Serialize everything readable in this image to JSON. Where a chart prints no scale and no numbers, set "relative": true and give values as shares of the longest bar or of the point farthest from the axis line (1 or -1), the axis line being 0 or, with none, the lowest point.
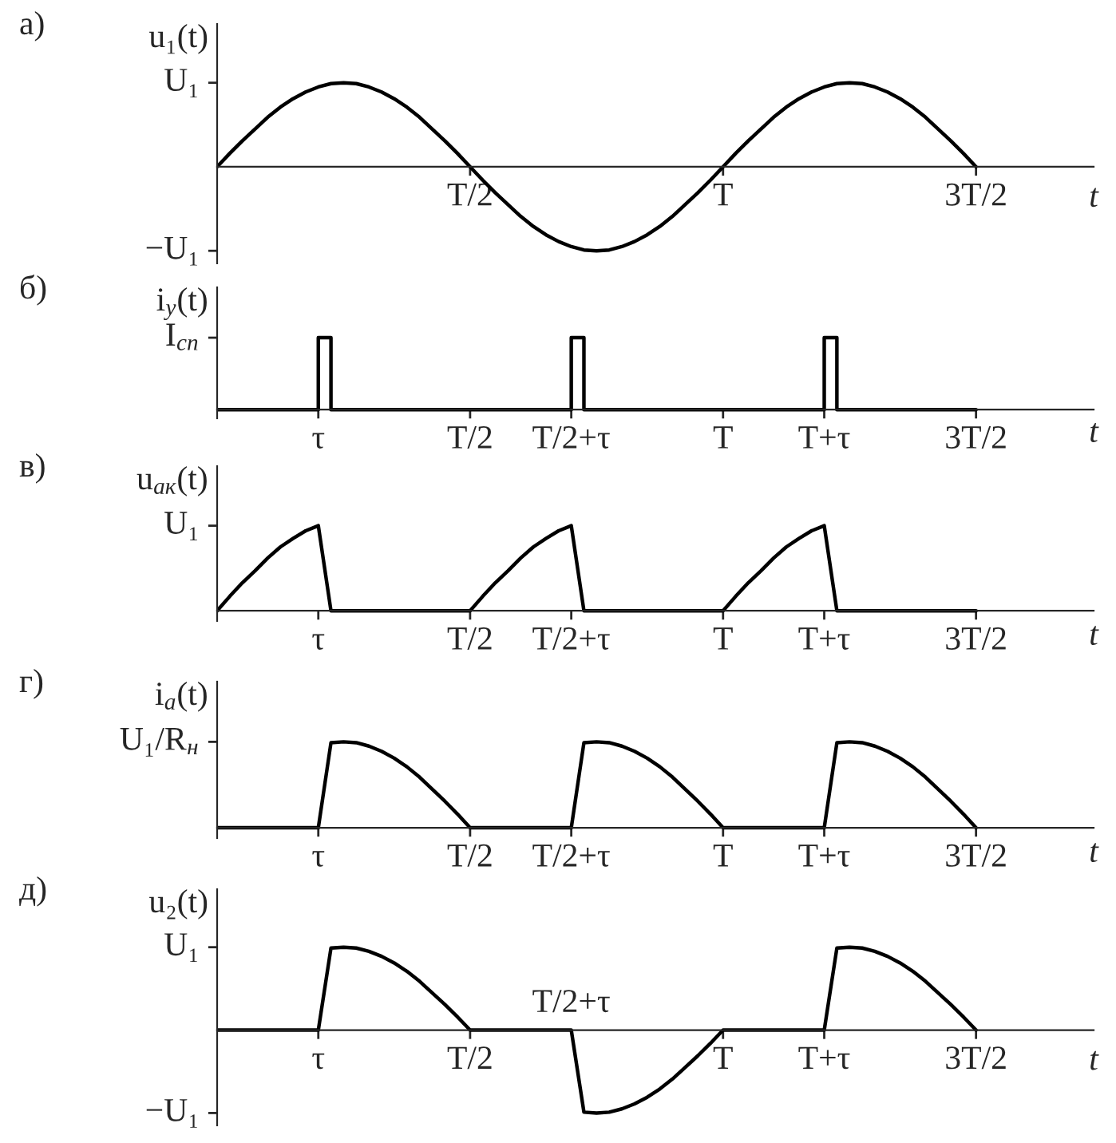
{
  "chart_data": [
    {
      "type": "line",
      "relative": true,
      "title": "а)",
      "xlabel": "t",
      "ylabel": "u₁(t)",
      "color": "#000000",
      "legend": false,
      "marker": "none",
      "categories": [
        null,
        null,
        null,
        null,
        null,
        null,
        null,
        null,
        null,
        null,
        null,
        null,
        null,
        null,
        null,
        null,
        null,
        null,
        null,
        null,
        "T/2",
        null,
        null,
        null,
        null,
        null,
        null,
        null,
        null,
        null,
        null,
        null,
        null,
        null,
        null,
        null,
        null,
        null,
        null,
        null,
        "T",
        null,
        null,
        null,
        null,
        null,
        null,
        null,
        null,
        null,
        null,
        null,
        null,
        null,
        null,
        null,
        null,
        null,
        null,
        null,
        "3T/2"
      ],
      "values": [
        0,
        0.16,
        0.31,
        0.45,
        0.59,
        0.71,
        0.81,
        0.89,
        0.95,
        0.99,
        1,
        0.99,
        0.95,
        0.89,
        0.81,
        0.71,
        0.59,
        0.45,
        0.31,
        0.16,
        0,
        -0.16,
        -0.31,
        -0.45,
        -0.59,
        -0.71,
        -0.81,
        -0.89,
        -0.95,
        -0.99,
        -1,
        -0.99,
        -0.95,
        -0.89,
        -0.81,
        -0.71,
        -0.59,
        -0.45,
        -0.31,
        -0.16,
        0,
        0.16,
        0.31,
        0.45,
        0.59,
        0.71,
        0.81,
        0.89,
        0.95,
        0.99,
        1,
        0.99,
        0.95,
        0.89,
        0.81,
        0.71,
        0.59,
        0.45,
        0.31,
        0.16,
        0
      ],
      "annotations": [
        "U₁",
        "−U₁"
      ]
    },
    {
      "type": "step",
      "relative": true,
      "title": "б)",
      "xlabel": "t",
      "ylabel": "i$_{у}$(t)",
      "color": "#000000",
      "legend": false,
      "marker": "none",
      "categories": [
        null,
        null,
        null,
        null,
        null,
        null,
        null,
        null,
        "τ",
        null,
        null,
        null,
        null,
        null,
        null,
        null,
        null,
        null,
        null,
        null,
        "T/2",
        null,
        null,
        null,
        null,
        null,
        null,
        null,
        "T/2+τ",
        null,
        null,
        null,
        null,
        null,
        null,
        null,
        null,
        null,
        null,
        null,
        "T",
        null,
        null,
        null,
        null,
        null,
        null,
        null,
        "T+τ",
        null,
        null,
        null,
        null,
        null,
        null,
        null,
        null,
        null,
        null,
        null,
        "3T/2"
      ],
      "values": [
        0,
        0,
        0,
        0,
        0,
        0,
        0,
        0,
        1,
        0,
        0,
        0,
        0,
        0,
        0,
        0,
        0,
        0,
        0,
        0,
        0,
        0,
        0,
        0,
        0,
        0,
        0,
        0,
        1,
        0,
        0,
        0,
        0,
        0,
        0,
        0,
        0,
        0,
        0,
        0,
        0,
        0,
        0,
        0,
        0,
        0,
        0,
        0,
        1,
        0,
        0,
        0,
        0,
        0,
        0,
        0,
        0,
        0,
        0,
        0,
        0
      ],
      "annotations": [
        "I$_{сп}$"
      ]
    },
    {
      "type": "line",
      "relative": true,
      "title": "в)",
      "xlabel": "t",
      "ylabel": "u$_{ак}$(t)",
      "color": "#000000",
      "legend": false,
      "marker": "none",
      "categories": [
        null,
        null,
        null,
        null,
        null,
        null,
        null,
        null,
        "τ",
        null,
        null,
        null,
        null,
        null,
        null,
        null,
        null,
        null,
        null,
        null,
        "T/2",
        null,
        null,
        null,
        null,
        null,
        null,
        null,
        "T/2+τ",
        null,
        null,
        null,
        null,
        null,
        null,
        null,
        null,
        null,
        null,
        null,
        "T",
        null,
        null,
        null,
        null,
        null,
        null,
        null,
        "T+τ",
        null,
        null,
        null,
        null,
        null,
        null,
        null,
        null,
        null,
        null,
        null,
        "3T/2"
      ],
      "values": [
        0,
        0.17,
        0.33,
        0.47,
        0.62,
        0.75,
        0.85,
        0.94,
        1,
        0,
        0,
        0,
        0,
        0,
        0,
        0,
        0,
        0,
        0,
        0,
        0,
        0.17,
        0.33,
        0.47,
        0.62,
        0.75,
        0.85,
        0.94,
        1,
        0,
        0,
        0,
        0,
        0,
        0,
        0,
        0,
        0,
        0,
        0,
        0,
        0.17,
        0.33,
        0.47,
        0.62,
        0.75,
        0.85,
        0.94,
        1,
        0,
        0,
        0,
        0,
        0,
        0,
        0,
        0,
        0,
        0,
        0,
        0
      ],
      "annotations": [
        "U₁"
      ]
    },
    {
      "type": "line",
      "relative": true,
      "title": "г)",
      "xlabel": "t",
      "ylabel": "i$_{а}$(t)",
      "color": "#000000",
      "legend": false,
      "marker": "none",
      "categories": [
        null,
        null,
        null,
        null,
        null,
        null,
        null,
        null,
        "τ",
        null,
        null,
        null,
        null,
        null,
        null,
        null,
        null,
        null,
        null,
        null,
        "T/2",
        null,
        null,
        null,
        null,
        null,
        null,
        null,
        "T/2+τ",
        null,
        null,
        null,
        null,
        null,
        null,
        null,
        null,
        null,
        null,
        null,
        "T",
        null,
        null,
        null,
        null,
        null,
        null,
        null,
        "T+τ",
        null,
        null,
        null,
        null,
        null,
        null,
        null,
        null,
        null,
        null,
        null,
        "3T/2"
      ],
      "values": [
        0,
        0,
        0,
        0,
        0,
        0,
        0,
        0,
        0,
        0.99,
        1,
        0.99,
        0.95,
        0.89,
        0.81,
        0.71,
        0.59,
        0.45,
        0.31,
        0.16,
        0,
        0,
        0,
        0,
        0,
        0,
        0,
        0,
        0,
        0.99,
        1,
        0.99,
        0.95,
        0.89,
        0.81,
        0.71,
        0.59,
        0.45,
        0.31,
        0.16,
        0,
        0,
        0,
        0,
        0,
        0,
        0,
        0,
        0,
        0.99,
        1,
        0.99,
        0.95,
        0.89,
        0.81,
        0.71,
        0.59,
        0.45,
        0.31,
        0.16,
        0
      ],
      "annotations": [
        "U₁/R$_{н}$"
      ]
    },
    {
      "type": "line",
      "relative": true,
      "title": "д)",
      "xlabel": "t",
      "ylabel": "u₂(t)",
      "color": "#000000",
      "legend": false,
      "marker": "none",
      "categories": [
        null,
        null,
        null,
        null,
        null,
        null,
        null,
        null,
        "τ",
        null,
        null,
        null,
        null,
        null,
        null,
        null,
        null,
        null,
        null,
        null,
        "T/2",
        null,
        null,
        null,
        null,
        null,
        null,
        null,
        null,
        null,
        null,
        null,
        null,
        null,
        null,
        null,
        null,
        null,
        null,
        null,
        "T",
        null,
        null,
        null,
        null,
        null,
        null,
        null,
        "T+τ",
        null,
        null,
        null,
        null,
        null,
        null,
        null,
        null,
        null,
        null,
        null,
        "3T/2"
      ],
      "values": [
        0,
        0,
        0,
        0,
        0,
        0,
        0,
        0,
        0,
        0.99,
        1,
        0.99,
        0.95,
        0.89,
        0.81,
        0.71,
        0.59,
        0.45,
        0.31,
        0.16,
        0,
        0,
        0,
        0,
        0,
        0,
        0,
        0,
        0,
        -0.99,
        -1,
        -0.99,
        -0.95,
        -0.89,
        -0.81,
        -0.71,
        -0.59,
        -0.45,
        -0.31,
        -0.16,
        0,
        0,
        0,
        0,
        0,
        0,
        0,
        0,
        0,
        0.99,
        1,
        0.99,
        0.95,
        0.89,
        0.81,
        0.71,
        0.59,
        0.45,
        0.31,
        0.16,
        0
      ],
      "annotations": [
        "U₁",
        "−U₁",
        "T/2+τ"
      ]
    }
  ]
}
